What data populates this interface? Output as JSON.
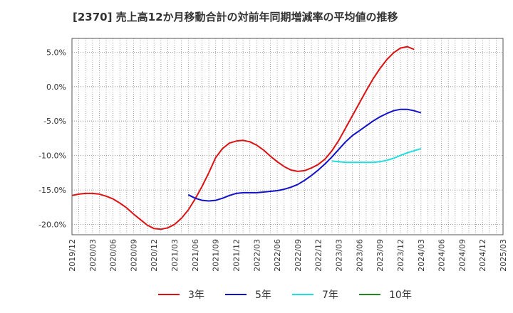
{
  "chart_data": {
    "type": "line",
    "title": "[2370]  売上高12か月移動合計の対前年同期増減率の平均値の推移",
    "xlabel": "",
    "ylabel": "",
    "x_ticks": [
      "2019/12",
      "2020/03",
      "2020/06",
      "2020/09",
      "2020/12",
      "2021/03",
      "2021/06",
      "2021/09",
      "2021/12",
      "2022/03",
      "2022/06",
      "2022/09",
      "2022/12",
      "2023/03",
      "2023/06",
      "2023/09",
      "2023/12",
      "2024/03",
      "2024/06",
      "2024/09",
      "2024/12",
      "2025/03"
    ],
    "y_ticks": [
      "5.0%",
      "0.0%",
      "-5.0%",
      "-10.0%",
      "-15.0%",
      "-20.0%"
    ],
    "y_tick_values": [
      5,
      0,
      -5,
      -10,
      -15,
      -20
    ],
    "ylim": [
      -21.5,
      7
    ],
    "grid": true,
    "legend_position": "bottom",
    "series": [
      {
        "name": "3年",
        "color": "#dd1111",
        "start": 0,
        "values": [
          -15.8,
          -15.6,
          -15.5,
          -15.5,
          -15.6,
          -15.9,
          -16.3,
          -16.9,
          -17.6,
          -18.5,
          -19.3,
          -20.1,
          -20.6,
          -20.7,
          -20.5,
          -20.0,
          -19.1,
          -17.9,
          -16.3,
          -14.5,
          -12.5,
          -10.3,
          -9.0,
          -8.2,
          -7.9,
          -7.8,
          -8.0,
          -8.5,
          -9.2,
          -10.1,
          -10.9,
          -11.6,
          -12.1,
          -12.3,
          -12.2,
          -11.8,
          -11.3,
          -10.5,
          -9.3,
          -7.8,
          -6.0,
          -4.2,
          -2.4,
          -0.6,
          1.1,
          2.6,
          3.9,
          4.9,
          5.6,
          5.8,
          5.4
        ]
      },
      {
        "name": "5年",
        "color": "#1111cc",
        "start": 17,
        "values": [
          -15.7,
          -16.2,
          -16.5,
          -16.6,
          -16.5,
          -16.2,
          -15.8,
          -15.5,
          -15.4,
          -15.4,
          -15.4,
          -15.3,
          -15.2,
          -15.1,
          -14.9,
          -14.6,
          -14.2,
          -13.6,
          -12.9,
          -12.1,
          -11.2,
          -10.2,
          -9.1,
          -8.0,
          -7.1,
          -6.4,
          -5.7,
          -5.0,
          -4.4,
          -3.9,
          -3.5,
          -3.3,
          -3.3,
          -3.5,
          -3.8
        ]
      },
      {
        "name": "7年",
        "color": "#22dddd",
        "start": 38,
        "values": [
          -10.8,
          -10.9,
          -11.0,
          -11.0,
          -11.0,
          -11.0,
          -11.0,
          -10.9,
          -10.7,
          -10.4,
          -10.0,
          -9.6,
          -9.3,
          -9.0
        ]
      },
      {
        "name": "10年",
        "color": "#228822",
        "start": 0,
        "values": []
      }
    ]
  }
}
